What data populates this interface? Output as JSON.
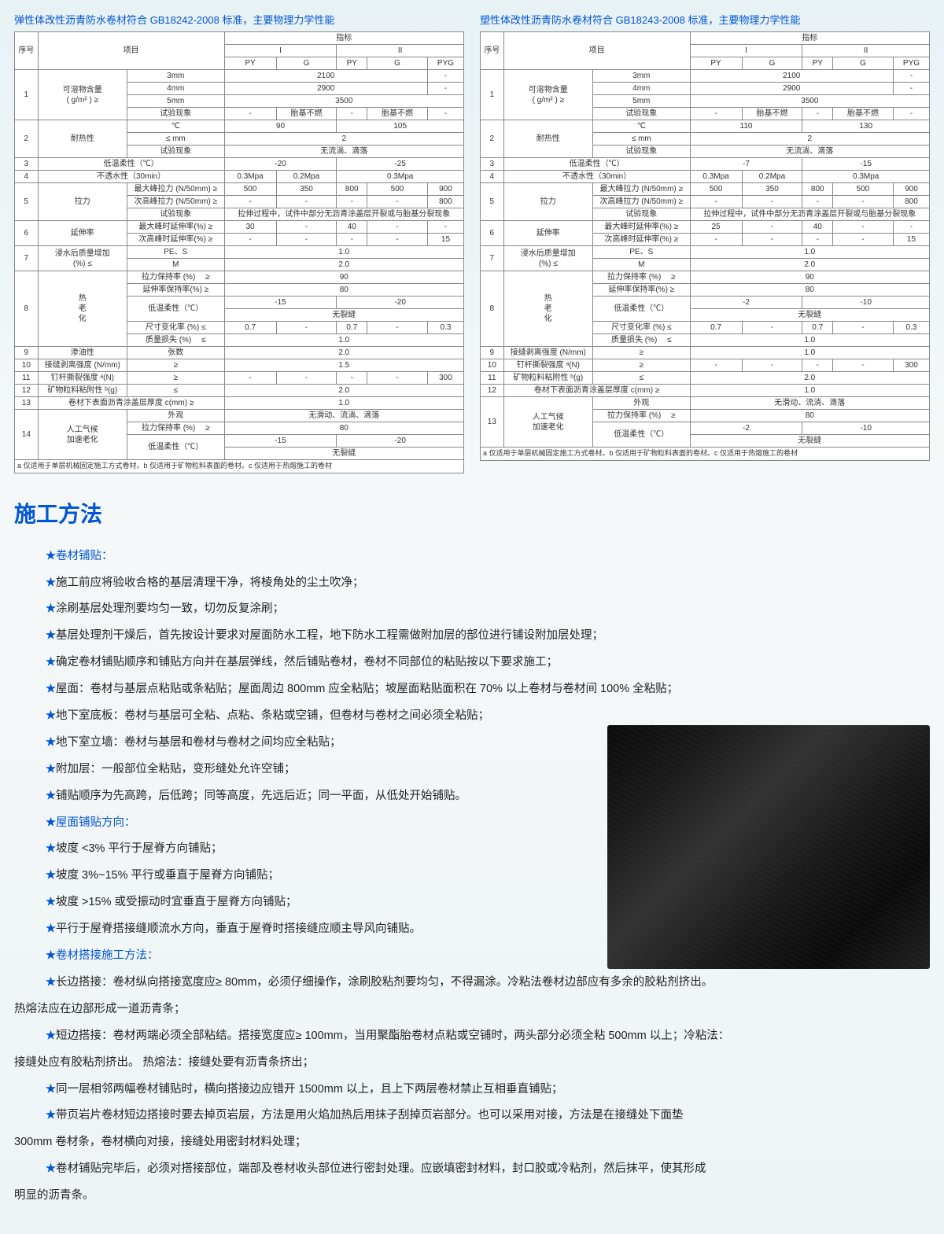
{
  "table1": {
    "title": "弹性体改性沥青防水卷材符合 GB18242-2008 标准，主要物理力学性能",
    "h_seq": "序号",
    "h_item": "项目",
    "h_index": "指标",
    "h_I": "I",
    "h_II": "II",
    "h_PY": "PY",
    "h_G": "G",
    "h_PYG": "PYG",
    "rows": {
      "r1_no": "1",
      "r1_item": "可溶物含量\n( g/m² ) ≥",
      "r1_3mm": "3mm",
      "r1_3mm_v": "2100",
      "r1_4mm": "4mm",
      "r1_4mm_v": "2900",
      "r1_5mm": "5mm",
      "r1_5mm_v": "3500",
      "r1_test": "试验现象",
      "r1_test_v1": "胎基不燃",
      "r1_test_v2": "胎基不燃",
      "r2_no": "2",
      "r2_item": "耐热性",
      "r2_c": "℃",
      "r2_c_v1": "90",
      "r2_c_v2": "105",
      "r2_mm": "≤ mm",
      "r2_mm_v": "2",
      "r2_test": "试验现象",
      "r2_test_v": "无流淌、滴落",
      "r3_no": "3",
      "r3_item": "低温柔性（℃）",
      "r3_v1": "-20",
      "r3_v2": "-25",
      "r4_no": "4",
      "r4_item": "不透水性（30min）",
      "r4_v1": "0.3Mpa",
      "r4_v2": "0.2Mpa",
      "r4_v3": "0.3Mpa",
      "r5_no": "5",
      "r5_item": "拉力",
      "r5_a": "最大峰拉力 (N/50mm) ≥",
      "r5_a_v": [
        "500",
        "350",
        "800",
        "500",
        "900"
      ],
      "r5_b": "次高峰拉力 (N/50mm) ≥",
      "r5_b_v": [
        "-",
        "-",
        "-",
        "-",
        "800"
      ],
      "r5_c": "试验现象",
      "r5_c_v": "拉伸过程中，试件中部分无沥青涂盖层开裂或与胎基分裂现象",
      "r6_no": "6",
      "r6_item": "延伸率",
      "r6_a": "最大峰时延伸率(%) ≥",
      "r6_a_v": [
        "30",
        "-",
        "40",
        "-",
        "-"
      ],
      "r6_b": "次高峰时延伸率(%) ≥",
      "r6_b_v": [
        "-",
        "-",
        "-",
        "-",
        "15"
      ],
      "r7_no": "7",
      "r7_item": "浸水后质量增加\n(%) ≤",
      "r7_a": "PE、S",
      "r7_a_v": "1.0",
      "r7_b": "M",
      "r7_b_v": "2.0",
      "r8_no": "8",
      "r8_item": "热\n老\n化",
      "r8_a": "拉力保持率 (%) 　≥",
      "r8_a_v": "90",
      "r8_b": "延伸率保持率(%) ≥",
      "r8_b_v": "80",
      "r8_c": "低温柔性（℃）",
      "r8_c_v1": "-15",
      "r8_c_v2": "-20",
      "r8_d": "",
      "r8_d_v": "无裂缝",
      "r8_e": "尺寸变化率 (%) ≤",
      "r8_e_v": [
        "0.7",
        "-",
        "0.7",
        "-",
        "0.3"
      ],
      "r8_f": "质量损失 (%) 　≤",
      "r8_f_v": "1.0",
      "r9_no": "9",
      "r9_item": "渗油性",
      "r9_sub": "张数",
      "r9_v": "2.0",
      "r10_no": "10",
      "r10_item": "接缝剥离强度 (N/mm)",
      "r10_sub": "≥",
      "r10_v": "1.5",
      "r11_no": "11",
      "r11_item": "钉杆撕裂强度 ᵃ(N)",
      "r11_sub": "≥",
      "r11_v": [
        "-",
        "-",
        "-",
        "-",
        "300"
      ],
      "r12_no": "12",
      "r12_item": "矿物粒料粘附性 ᵇ(g)",
      "r12_sub": "≤",
      "r12_v": "2.0",
      "r13_no": "13",
      "r13_item": "卷材下表面沥青涂盖层厚度 c(mm) ≥",
      "r13_v": "1.0",
      "r14_no": "14",
      "r14_item": "人工气候\n加速老化",
      "r14_a": "外观",
      "r14_a_v": "无滑动、流淌、滴落",
      "r14_b": "拉力保持率 (%) 　≥",
      "r14_b_v": "80",
      "r14_c": "低温柔性（℃）",
      "r14_c_v1": "-15",
      "r14_c_v2": "-20",
      "r14_d": "",
      "r14_d_v": "无裂缝"
    },
    "footnote": "a 仅适用于单层机械固定施工方式卷材。b 仅适用于矿物粒料表面的卷材。c 仅适用于热熔施工的卷材"
  },
  "table2": {
    "title": "塑性体改性沥青防水卷材符合 GB18243-2008 标准，主要物理力学性能",
    "h_seq": "序号",
    "h_item": "项目",
    "h_index": "指标",
    "h_I": "I",
    "h_II": "II",
    "h_PY": "PY",
    "h_G": "G",
    "h_PYG": "PYG",
    "rows": {
      "r1_no": "1",
      "r1_item": "可溶物含量\n( g/m² ) ≥",
      "r1_3mm": "3mm",
      "r1_3mm_v": "2100",
      "r1_4mm": "4mm",
      "r1_4mm_v": "2900",
      "r1_5mm": "5mm",
      "r1_5mm_v": "3500",
      "r1_test": "试验现象",
      "r1_test_v1": "胎基不燃",
      "r1_test_v2": "胎基不燃",
      "r2_no": "2",
      "r2_item": "耐热性",
      "r2_c": "℃",
      "r2_c_v1": "110",
      "r2_c_v2": "130",
      "r2_mm": "≤ mm",
      "r2_mm_v": "2",
      "r2_test": "试验现象",
      "r2_test_v": "无流淌、滴落",
      "r3_no": "3",
      "r3_item": "低温柔性（℃）",
      "r3_v1": "-7",
      "r3_v2": "-15",
      "r4_no": "4",
      "r4_item": "不透水性（30min）",
      "r4_v1": "0.3Mpa",
      "r4_v2": "0.2Mpa",
      "r4_v3": "0.3Mpa",
      "r5_no": "5",
      "r5_item": "拉力",
      "r5_a": "最大峰拉力 (N/50mm) ≥",
      "r5_a_v": [
        "500",
        "350",
        "800",
        "500",
        "900"
      ],
      "r5_b": "次高峰拉力 (N/50mm) ≥",
      "r5_b_v": [
        "-",
        "-",
        "-",
        "-",
        "800"
      ],
      "r5_c": "试验现象",
      "r5_c_v": "拉伸过程中，试件中部分无沥青涂盖层开裂或与胎基分裂现象",
      "r6_no": "6",
      "r6_item": "延伸率",
      "r6_a": "最大峰时延伸率(%) ≥",
      "r6_a_v": [
        "25",
        "-",
        "40",
        "-",
        "-"
      ],
      "r6_b": "次高峰时延伸率(%) ≥",
      "r6_b_v": [
        "-",
        "-",
        "-",
        "-",
        "15"
      ],
      "r7_no": "7",
      "r7_item": "浸水后质量增加\n(%) ≤",
      "r7_a": "PE、S",
      "r7_a_v": "1.0",
      "r7_b": "M",
      "r7_b_v": "2.0",
      "r8_no": "8",
      "r8_item": "热\n老\n化",
      "r8_a": "拉力保持率 (%) 　≥",
      "r8_a_v": "90",
      "r8_b": "延伸率保持率(%) ≥",
      "r8_b_v": "80",
      "r8_c": "低温柔性（℃）",
      "r8_c_v1": "-2",
      "r8_c_v2": "-10",
      "r8_d": "",
      "r8_d_v": "无裂缝",
      "r8_e": "尺寸变化率 (%) ≤",
      "r8_e_v": [
        "0.7",
        "-",
        "0.7",
        "-",
        "0.3"
      ],
      "r8_f": "质量损失 (%) 　≤",
      "r8_f_v": "1.0",
      "r9_no": "9",
      "r9_item": "接缝剥离强度 (N/mm)",
      "r9_sub": "≥",
      "r9_v": "1.0",
      "r10_no": "10",
      "r10_item": "钉杆撕裂强度 ᵃ(N)",
      "r10_sub": "≥",
      "r10_v": [
        "-",
        "-",
        "-",
        "-",
        "300"
      ],
      "r11_no": "11",
      "r11_item": "矿物粒料粘附性 ᵇ(g)",
      "r11_sub": "≤",
      "r11_v": "2.0",
      "r12_no": "12",
      "r12_item": "卷材下表面沥青涂盖层厚度 c(mm) ≥",
      "r12_v": "1.0",
      "r13_no": "13",
      "r13_item": "人工气候\n加速老化",
      "r13_a": "外观",
      "r13_a_v": "无滑动、流淌、滴落",
      "r13_b": "拉力保持率 (%) 　≥",
      "r13_b_v": "80",
      "r13_c": "低温柔性（℃）",
      "r13_c_v1": "-2",
      "r13_c_v2": "-10",
      "r13_d": "",
      "r13_d_v": "无裂缝"
    },
    "footnote": "a 仅适用于单层机械固定施工方式卷材。b 仅适用于矿物粒料表面的卷材。c 仅适用于热熔施工的卷材"
  },
  "methods": {
    "title": "施工方法",
    "h1": "卷材铺贴：",
    "p1": "施工前应将验收合格的基层清理干净，将棱角处的尘土吹净；",
    "p2": "涂刷基层处理剂要均匀一致，切勿反复涂刷；",
    "p3": "基层处理剂干燥后，首先按设计要求对屋面防水工程，地下防水工程需做附加层的部位进行铺设附加层处理；",
    "p4": "确定卷材铺贴顺序和铺贴方向并在基层弹线，然后铺贴卷材，卷材不同部位的粘贴按以下要求施工；",
    "p5": "屋面：卷材与基层点粘贴或条粘贴；屋面周边 800mm 应全粘贴；坡屋面粘贴面积在 70% 以上卷材与卷材间 100% 全粘贴；",
    "p6": "地下室底板：卷材与基层可全粘、点粘、条粘或空铺，但卷材与卷材之间必须全粘贴；",
    "p7": "地下室立墙：卷材与基层和卷材与卷材之间均应全粘贴；",
    "p8": "附加层：一般部位全粘贴，变形缝处允许空铺；",
    "p9": "铺贴顺序为先高跨，后低跨；同等高度，先远后近；同一平面，从低处开始铺贴。",
    "h2": "屋面铺贴方向：",
    "p10": "坡度 <3% 平行于屋脊方向铺贴；",
    "p11": "坡度 3%~15% 平行或垂直于屋脊方向铺贴；",
    "p12": "坡度 >15% 或受振动时宜垂直于屋脊方向铺贴；",
    "p13": "平行于屋脊搭接缝顺流水方向，垂直于屋脊时搭接缝应顺主导风向铺贴。",
    "h3": "卷材搭接施工方法：",
    "p14a": "长边搭接：卷材纵向搭接宽度应≥ 80mm，必须仔细操作，涂刷胶粘剂要均匀，不得漏涂。冷粘法卷材边部应有多余的胶粘剂挤出。",
    "p14b": "热熔法应在边部形成一道沥青条；",
    "p15a": "短边搭接：卷材两端必须全部粘结。搭接宽度应≥ 100mm，当用聚酯胎卷材点粘或空铺时，两头部分必须全粘 500mm 以上；冷粘法：",
    "p15b": "接缝处应有胶粘剂挤出。 热熔法：接缝处要有沥青条挤出；",
    "p16": "同一层相邻两幅卷材铺贴时，横向搭接边应错开 1500mm 以上，且上下两层卷材禁止互相垂直铺贴；",
    "p17a": "带页岩片卷材短边搭接时要去掉页岩层，方法是用火焰加热后用抹子刮掉页岩部分。也可以采用对接，方法是在接缝处下面垫",
    "p17b": "300mm 卷材条，卷材横向对接，接缝处用密封材料处理；",
    "p18a": "卷材铺贴完毕后，必须对搭接部位，端部及卷材收头部位进行密封处理。应嵌填密封材料，封口胶或冷粘剂，然后抹平，使其形成",
    "p18b": "明显的沥青条。"
  }
}
